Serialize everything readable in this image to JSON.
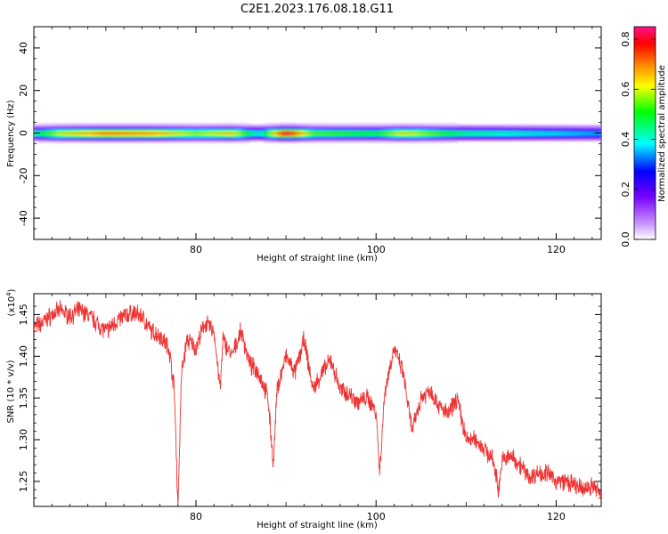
{
  "chart_data": [
    {
      "type": "heatmap",
      "title": "C2E1.2023.176.08.18.G11",
      "xlabel": "Height of straight line (km)",
      "ylabel": "Frequency (Hz)",
      "xlim": [
        62,
        125
      ],
      "ylim": [
        -50,
        50
      ],
      "x_ticks": [
        "80",
        "100",
        "120"
      ],
      "y_ticks": [
        "40",
        "20",
        "0",
        "-20",
        "-40"
      ],
      "band_center_hz": 0,
      "band_halfwidth_hz": 4,
      "intensity_profile": [
        {
          "x": 62,
          "v": 0.45
        },
        {
          "x": 65,
          "v": 0.62
        },
        {
          "x": 70,
          "v": 0.72
        },
        {
          "x": 75,
          "v": 0.7
        },
        {
          "x": 80,
          "v": 0.58
        },
        {
          "x": 84,
          "v": 0.66
        },
        {
          "x": 87,
          "v": 0.4
        },
        {
          "x": 90,
          "v": 0.85
        },
        {
          "x": 93,
          "v": 0.55
        },
        {
          "x": 100,
          "v": 0.5
        },
        {
          "x": 103,
          "v": 0.64
        },
        {
          "x": 110,
          "v": 0.46
        },
        {
          "x": 118,
          "v": 0.4
        },
        {
          "x": 125,
          "v": 0.35
        }
      ],
      "colorbar": {
        "label": "Normalized spectral amplitude",
        "range": [
          0,
          0.85
        ],
        "ticks": [
          "0.0",
          "0.2",
          "0.4",
          "0.6",
          "0.8"
        ]
      }
    },
    {
      "type": "line",
      "xlabel": "Height of straight line (km)",
      "ylabel": "SNR (10 * v/v)",
      "y_multiplier": "(x10",
      "y_multiplier_exp": "4",
      "y_multiplier_close": ")",
      "xlim": [
        62,
        125
      ],
      "ylim": [
        1.22,
        1.475
      ],
      "x_ticks": [
        "80",
        "100",
        "120"
      ],
      "y_ticks": [
        "1.45",
        "1.40",
        "1.35",
        "1.30",
        "1.25"
      ],
      "color": "#ee3333",
      "series": [
        {
          "x": [
            62,
            63,
            64,
            65,
            66,
            67,
            68,
            69,
            70,
            71,
            72,
            73,
            74,
            75,
            76,
            77,
            77.6,
            78,
            78.4,
            79,
            80,
            81,
            82,
            82.7,
            83,
            84,
            85,
            86,
            87,
            88,
            88.6,
            89,
            90,
            91,
            92,
            93,
            94,
            95,
            96,
            97,
            98,
            99,
            100,
            100.4,
            100.8,
            101,
            102,
            103,
            104,
            105,
            106,
            107,
            108,
            109,
            110,
            111,
            112,
            113,
            113.6,
            114,
            115,
            116,
            117,
            118,
            119,
            120,
            121,
            122,
            123,
            124,
            125
          ],
          "y": [
            1.435,
            1.44,
            1.45,
            1.455,
            1.448,
            1.455,
            1.45,
            1.44,
            1.43,
            1.44,
            1.448,
            1.452,
            1.448,
            1.43,
            1.425,
            1.41,
            1.36,
            1.22,
            1.38,
            1.42,
            1.41,
            1.44,
            1.43,
            1.36,
            1.42,
            1.4,
            1.43,
            1.39,
            1.38,
            1.35,
            1.27,
            1.36,
            1.4,
            1.38,
            1.42,
            1.36,
            1.38,
            1.395,
            1.36,
            1.355,
            1.345,
            1.35,
            1.335,
            1.26,
            1.33,
            1.36,
            1.41,
            1.38,
            1.31,
            1.35,
            1.36,
            1.34,
            1.33,
            1.35,
            1.3,
            1.3,
            1.29,
            1.275,
            1.24,
            1.275,
            1.28,
            1.27,
            1.255,
            1.26,
            1.26,
            1.25,
            1.25,
            1.245,
            1.24,
            1.245,
            1.235
          ]
        }
      ]
    }
  ]
}
